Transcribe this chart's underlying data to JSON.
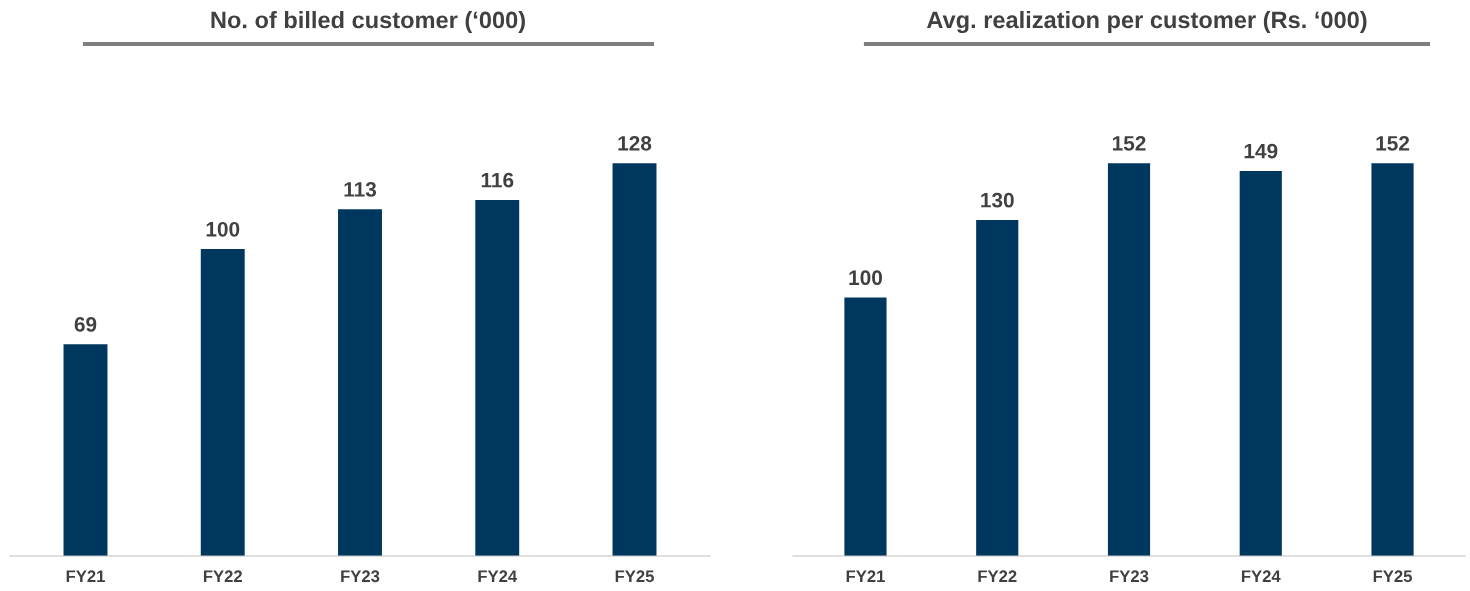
{
  "chart_data": [
    {
      "type": "bar",
      "title": "No. of billed customer (‘000)",
      "categories": [
        "FY21",
        "FY22",
        "FY23",
        "FY24",
        "FY25"
      ],
      "values": [
        69,
        100,
        113,
        116,
        128
      ],
      "color": "#00375f",
      "data_labels": true,
      "grid": false,
      "legend": false,
      "tick_labels": "x"
    },
    {
      "type": "bar",
      "title": "Avg. realization per customer (Rs. ‘000)",
      "categories": [
        "FY21",
        "FY22",
        "FY23",
        "FY24",
        "FY25"
      ],
      "values": [
        100,
        130,
        152,
        149,
        152
      ],
      "color": "#00375f",
      "data_labels": true,
      "grid": false,
      "legend": false,
      "tick_labels": "x"
    }
  ]
}
